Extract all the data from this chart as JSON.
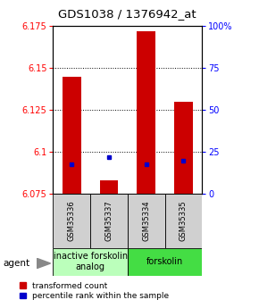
{
  "title": "GDS1038 / 1376942_at",
  "samples": [
    "GSM35336",
    "GSM35337",
    "GSM35334",
    "GSM35335"
  ],
  "red_values": [
    6.145,
    6.083,
    6.172,
    6.13
  ],
  "blue_values": [
    6.093,
    6.097,
    6.093,
    6.095
  ],
  "ylim_left": [
    6.075,
    6.175
  ],
  "ylim_right": [
    0,
    100
  ],
  "yticks_left": [
    6.075,
    6.1,
    6.125,
    6.15,
    6.175
  ],
  "yticks_right": [
    0,
    25,
    50,
    75,
    100
  ],
  "ytick_labels_right": [
    "0",
    "25",
    "50",
    "75",
    "100%"
  ],
  "groups": [
    {
      "label": "inactive forskolin\nanalog",
      "color": "#bbffbb",
      "samples": [
        0,
        1
      ]
    },
    {
      "label": "forskolin",
      "color": "#44dd44",
      "samples": [
        2,
        3
      ]
    }
  ],
  "bar_color": "#cc0000",
  "dot_color": "#0000cc",
  "bar_width": 0.5,
  "background_color": "#ffffff",
  "plot_bg_color": "#ffffff",
  "legend_red": "transformed count",
  "legend_blue": "percentile rank within the sample",
  "agent_label": "agent",
  "title_fontsize": 9.5,
  "tick_fontsize": 7,
  "sample_fontsize": 6,
  "group_fontsize": 7,
  "legend_fontsize": 6.5
}
